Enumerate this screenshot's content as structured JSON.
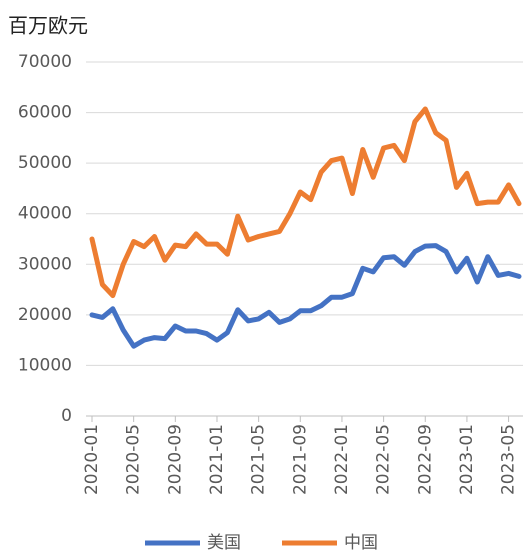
{
  "chart_data": {
    "type": "line",
    "y_label": "百万欧元",
    "categories": [
      "2020-01",
      null,
      null,
      null,
      "2020-05",
      null,
      null,
      null,
      "2020-09",
      null,
      null,
      null,
      "2021-01",
      null,
      null,
      null,
      "2021-05",
      null,
      null,
      null,
      "2021-09",
      null,
      null,
      null,
      "2022-01",
      null,
      null,
      null,
      "2022-05",
      null,
      null,
      null,
      "2022-09",
      null,
      null,
      null,
      "2023-01",
      null,
      null,
      null,
      "2023-05",
      null
    ],
    "series": [
      {
        "name": "美国",
        "color": "#4472c4",
        "values": [
          20000,
          19500,
          21200,
          17000,
          13800,
          15000,
          15500,
          15300,
          17800,
          16800,
          16800,
          16300,
          15000,
          16500,
          21000,
          18800,
          19200,
          20500,
          18500,
          19200,
          20800,
          20800,
          21800,
          23500,
          23500,
          24200,
          29200,
          28500,
          31300,
          31500,
          29800,
          32500,
          33600,
          33700,
          32500,
          28500,
          31200,
          26500,
          31500,
          27800,
          28200,
          27600
        ]
      },
      {
        "name": "中国",
        "color": "#ed7d31",
        "values": [
          35000,
          26000,
          23800,
          30000,
          34500,
          33500,
          35500,
          30800,
          33800,
          33500,
          36000,
          34000,
          34000,
          32000,
          39500,
          34800,
          35500,
          36000,
          36500,
          40000,
          44300,
          42800,
          48200,
          50500,
          51000,
          44000,
          52700,
          47200,
          53000,
          53500,
          50500,
          58200,
          60700,
          56000,
          54500,
          45200,
          48000,
          42000,
          42300,
          42300,
          45700,
          42000
        ]
      }
    ],
    "ylim": [
      0,
      70000
    ],
    "yticks": [
      0,
      10000,
      20000,
      30000,
      40000,
      50000,
      60000,
      70000
    ],
    "grid": true,
    "legend": "bottom"
  }
}
